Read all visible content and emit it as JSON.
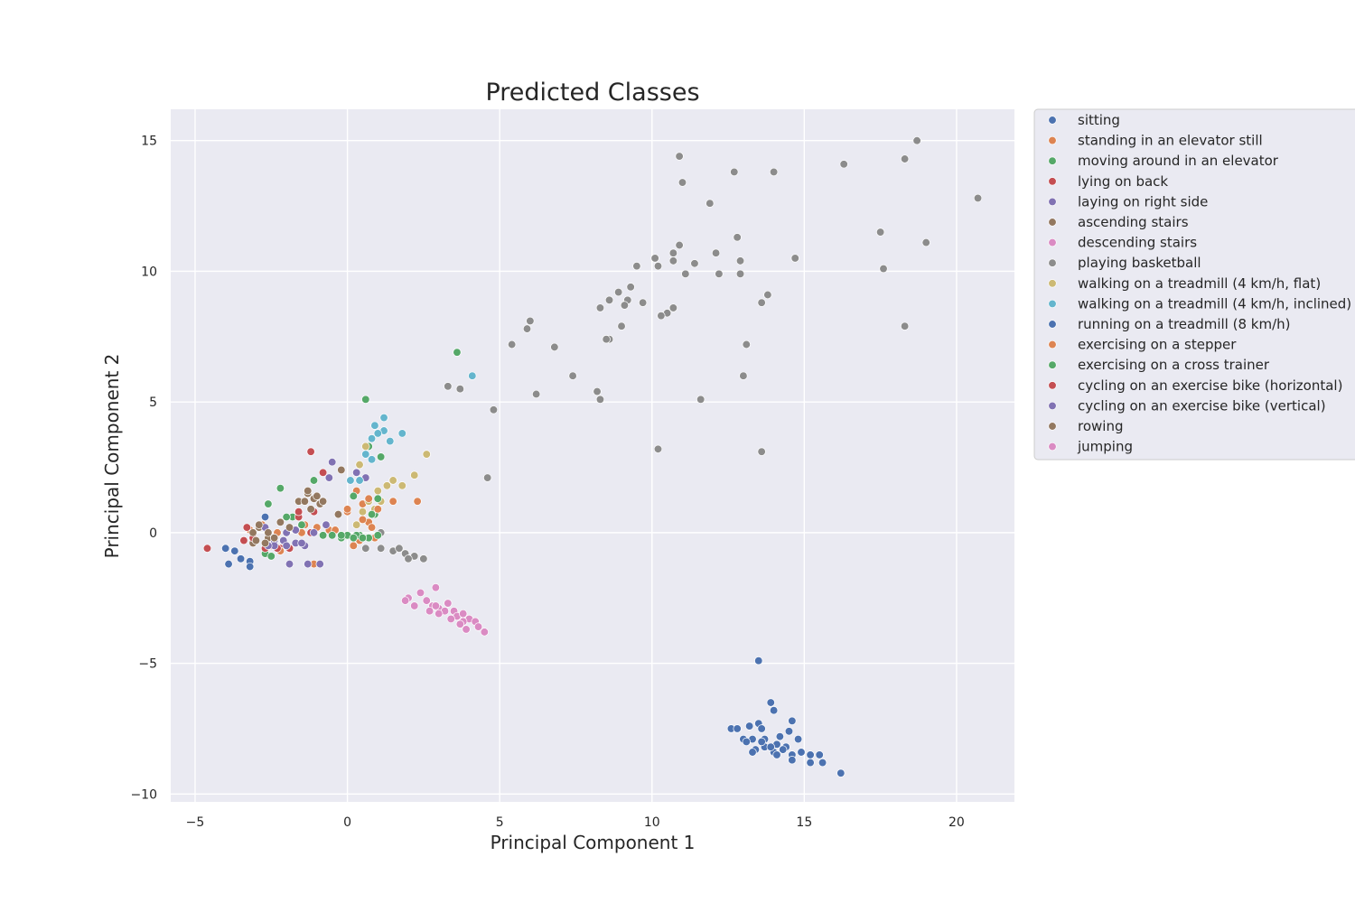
{
  "chart_data": {
    "type": "scatter",
    "title": "Predicted Classes",
    "xlabel": "Principal Component 1",
    "ylabel": "Principal Component 2",
    "xlim": [
      -5.8,
      21.9
    ],
    "ylim": [
      -10.3,
      16.2
    ],
    "xticks": [
      -5,
      0,
      5,
      10,
      15,
      20
    ],
    "yticks": [
      -10,
      -5,
      0,
      5,
      10,
      15
    ],
    "grid": true,
    "legend_position": "right-outside",
    "series": [
      {
        "name": "sitting",
        "color": "#4c72b0",
        "points": []
      },
      {
        "name": "standing in an elevator still",
        "color": "#dd8452",
        "points": [
          [
            -3.2,
            0.1
          ],
          [
            -2.8,
            0.3
          ],
          [
            -2.3,
            0.0
          ],
          [
            -1.9,
            0.2
          ],
          [
            -1.4,
            0.3
          ],
          [
            -1.0,
            0.2
          ],
          [
            -0.6,
            0.1
          ],
          [
            0.0,
            0.8
          ],
          [
            0.3,
            1.6
          ],
          [
            0.5,
            1.1
          ],
          [
            0.2,
            -0.5
          ],
          [
            -1.1,
            -1.2
          ],
          [
            0.9,
            -0.2
          ],
          [
            1.5,
            1.2
          ],
          [
            0.7,
            0.4
          ]
        ]
      },
      {
        "name": "moving around in an elevator",
        "color": "#55a868",
        "points": [
          [
            -2.2,
            1.7
          ],
          [
            -2.6,
            1.1
          ],
          [
            -1.8,
            0.6
          ],
          [
            -1.1,
            2.0
          ],
          [
            0.6,
            5.1
          ],
          [
            3.6,
            6.9
          ],
          [
            1.1,
            2.9
          ],
          [
            0.7,
            3.3
          ],
          [
            0.2,
            1.4
          ],
          [
            -0.8,
            -0.1
          ],
          [
            -0.2,
            -0.2
          ],
          [
            0.4,
            -0.1
          ],
          [
            0.9,
            0.7
          ],
          [
            -2.7,
            -0.8
          ],
          [
            -1.5,
            0.3
          ]
        ]
      },
      {
        "name": "lying on back",
        "color": "#c44e52",
        "points": [
          [
            -4.6,
            -0.6
          ],
          [
            -3.4,
            -0.3
          ],
          [
            -1.2,
            3.1
          ],
          [
            -0.8,
            2.3
          ],
          [
            -1.6,
            0.6
          ],
          [
            -2.2,
            -0.6
          ],
          [
            -1.1,
            0.8
          ],
          [
            -2.5,
            -0.5
          ]
        ]
      },
      {
        "name": "laying on right side",
        "color": "#8172b3",
        "points": [
          [
            -0.5,
            2.7
          ],
          [
            0.6,
            2.1
          ],
          [
            -1.9,
            -1.2
          ],
          [
            -1.3,
            -1.2
          ],
          [
            -0.9,
            -1.2
          ],
          [
            -1.7,
            -0.4
          ],
          [
            -2.4,
            -0.3
          ],
          [
            -1.4,
            -0.5
          ],
          [
            -2.0,
            0.0
          ]
        ]
      },
      {
        "name": "ascending stairs",
        "color": "#937860",
        "points": [
          [
            -0.2,
            2.4
          ],
          [
            -1.3,
            1.5
          ],
          [
            -0.9,
            1.1
          ],
          [
            -1.6,
            1.2
          ],
          [
            -2.9,
            0.2
          ],
          [
            -2.6,
            -0.2
          ],
          [
            -3.1,
            -0.4
          ],
          [
            -2.2,
            0.4
          ],
          [
            -0.3,
            0.7
          ],
          [
            -1.1,
            1.3
          ]
        ]
      },
      {
        "name": "descending stairs",
        "color": "#da8bc3",
        "points": []
      },
      {
        "name": "playing basketball",
        "color": "#8c8c8c",
        "points": [
          [
            18.7,
            15.0
          ],
          [
            10.9,
            14.4
          ],
          [
            16.3,
            14.1
          ],
          [
            18.3,
            14.3
          ],
          [
            12.7,
            13.8
          ],
          [
            14.0,
            13.8
          ],
          [
            11.0,
            13.4
          ],
          [
            20.7,
            12.8
          ],
          [
            11.9,
            12.6
          ],
          [
            12.8,
            11.3
          ],
          [
            17.5,
            11.5
          ],
          [
            19.0,
            11.1
          ],
          [
            10.9,
            11.0
          ],
          [
            10.7,
            10.7
          ],
          [
            10.1,
            10.5
          ],
          [
            12.1,
            10.7
          ],
          [
            14.7,
            10.5
          ],
          [
            10.7,
            10.4
          ],
          [
            11.4,
            10.3
          ],
          [
            9.5,
            10.2
          ],
          [
            10.2,
            10.2
          ],
          [
            12.9,
            10.4
          ],
          [
            17.6,
            10.1
          ],
          [
            11.1,
            9.9
          ],
          [
            12.2,
            9.9
          ],
          [
            12.9,
            9.9
          ],
          [
            9.3,
            9.4
          ],
          [
            8.9,
            9.2
          ],
          [
            13.8,
            9.1
          ],
          [
            8.6,
            8.9
          ],
          [
            9.2,
            8.9
          ],
          [
            9.7,
            8.8
          ],
          [
            9.1,
            8.7
          ],
          [
            8.3,
            8.6
          ],
          [
            10.7,
            8.6
          ],
          [
            13.6,
            8.8
          ],
          [
            10.5,
            8.4
          ],
          [
            10.3,
            8.3
          ],
          [
            6.0,
            8.1
          ],
          [
            5.9,
            7.8
          ],
          [
            9.0,
            7.9
          ],
          [
            18.3,
            7.9
          ],
          [
            8.6,
            7.4
          ],
          [
            8.5,
            7.4
          ],
          [
            5.4,
            7.2
          ],
          [
            6.8,
            7.1
          ],
          [
            13.1,
            7.2
          ],
          [
            7.4,
            6.0
          ],
          [
            13.0,
            6.0
          ],
          [
            3.3,
            5.6
          ],
          [
            3.7,
            5.5
          ],
          [
            6.2,
            5.3
          ],
          [
            8.2,
            5.4
          ],
          [
            8.3,
            5.1
          ],
          [
            11.6,
            5.1
          ],
          [
            4.8,
            4.7
          ],
          [
            10.2,
            3.2
          ],
          [
            13.6,
            3.1
          ],
          [
            4.6,
            2.1
          ],
          [
            1.1,
            -0.6
          ],
          [
            1.5,
            -0.7
          ],
          [
            1.9,
            -0.8
          ],
          [
            2.2,
            -0.9
          ],
          [
            2.5,
            -1.0
          ],
          [
            0.8,
            0.2
          ],
          [
            1.1,
            0.0
          ],
          [
            0.6,
            -0.6
          ],
          [
            1.7,
            -0.6
          ],
          [
            2.0,
            -1.0
          ]
        ]
      },
      {
        "name": "walking on a treadmill (4 km/h, flat)",
        "color": "#ccb974",
        "points": [
          [
            2.6,
            3.0
          ],
          [
            2.2,
            2.2
          ],
          [
            1.8,
            1.8
          ],
          [
            1.5,
            2.0
          ],
          [
            1.3,
            1.8
          ],
          [
            1.0,
            1.6
          ],
          [
            0.7,
            1.2
          ],
          [
            0.4,
            2.6
          ],
          [
            0.3,
            2.3
          ],
          [
            0.6,
            3.3
          ],
          [
            1.1,
            1.2
          ],
          [
            0.9,
            0.9
          ],
          [
            0.5,
            0.8
          ],
          [
            0.3,
            0.3
          ]
        ]
      },
      {
        "name": "walking on a treadmill (4 km/h, inclined)",
        "color": "#64b5cd",
        "points": [
          [
            1.2,
            4.4
          ],
          [
            0.9,
            4.1
          ],
          [
            1.2,
            3.9
          ],
          [
            1.8,
            3.8
          ],
          [
            1.0,
            3.8
          ],
          [
            1.4,
            3.5
          ],
          [
            0.8,
            3.6
          ],
          [
            0.6,
            3.0
          ],
          [
            0.8,
            2.8
          ],
          [
            0.4,
            2.0
          ],
          [
            0.1,
            2.0
          ],
          [
            4.1,
            6.0
          ]
        ]
      },
      {
        "name": "running on a treadmill (8 km/h)",
        "color": "#4c72b0",
        "points": [
          [
            13.5,
            -4.9
          ],
          [
            13.9,
            -6.5
          ],
          [
            14.0,
            -6.8
          ],
          [
            14.6,
            -7.2
          ],
          [
            12.6,
            -7.5
          ],
          [
            12.8,
            -7.5
          ],
          [
            13.2,
            -7.4
          ],
          [
            13.5,
            -7.3
          ],
          [
            13.6,
            -7.5
          ],
          [
            14.5,
            -7.6
          ],
          [
            14.2,
            -7.8
          ],
          [
            13.0,
            -7.9
          ],
          [
            13.3,
            -7.9
          ],
          [
            13.7,
            -7.9
          ],
          [
            14.1,
            -8.1
          ],
          [
            14.4,
            -8.2
          ],
          [
            14.8,
            -7.9
          ],
          [
            13.1,
            -8.0
          ],
          [
            13.4,
            -8.3
          ],
          [
            13.7,
            -8.2
          ],
          [
            14.0,
            -8.4
          ],
          [
            14.3,
            -8.3
          ],
          [
            14.6,
            -8.5
          ],
          [
            14.9,
            -8.4
          ],
          [
            15.2,
            -8.5
          ],
          [
            15.5,
            -8.5
          ],
          [
            15.2,
            -8.8
          ],
          [
            15.6,
            -8.8
          ],
          [
            14.6,
            -8.7
          ],
          [
            13.9,
            -8.2
          ],
          [
            13.3,
            -8.4
          ],
          [
            13.6,
            -8.0
          ],
          [
            14.1,
            -8.5
          ],
          [
            16.2,
            -9.2
          ],
          [
            -4.0,
            -0.6
          ],
          [
            -3.7,
            -0.7
          ],
          [
            -3.5,
            -1.0
          ],
          [
            -3.2,
            -1.1
          ],
          [
            -3.9,
            -1.2
          ],
          [
            -3.2,
            -1.3
          ],
          [
            -2.7,
            0.6
          ]
        ]
      },
      {
        "name": "exercising on a stepper",
        "color": "#dd8452",
        "points": [
          [
            2.3,
            1.2
          ],
          [
            1.0,
            0.9
          ],
          [
            0.7,
            1.3
          ],
          [
            0.4,
            -0.3
          ],
          [
            -1.5,
            0.0
          ],
          [
            -2.2,
            -0.7
          ],
          [
            0.0,
            0.9
          ],
          [
            0.8,
            0.2
          ],
          [
            -0.4,
            0.1
          ],
          [
            0.5,
            0.5
          ]
        ]
      },
      {
        "name": "exercising on a cross trainer",
        "color": "#55a868",
        "points": [
          [
            0.0,
            -0.1
          ],
          [
            0.3,
            -0.1
          ],
          [
            0.7,
            -0.2
          ],
          [
            -0.5,
            -0.1
          ],
          [
            -0.8,
            -0.1
          ],
          [
            1.0,
            -0.1
          ],
          [
            0.5,
            -0.2
          ],
          [
            1.0,
            1.3
          ],
          [
            0.8,
            0.7
          ],
          [
            -2.0,
            0.6
          ],
          [
            -2.5,
            -0.9
          ],
          [
            0.2,
            -0.2
          ],
          [
            -0.2,
            -0.1
          ]
        ]
      },
      {
        "name": "cycling on an exercise bike (horizontal)",
        "color": "#c44e52",
        "points": [
          [
            -1.6,
            0.8
          ],
          [
            -3.1,
            -0.2
          ],
          [
            -2.7,
            -0.6
          ],
          [
            -2.3,
            -0.6
          ],
          [
            -1.9,
            -0.6
          ],
          [
            -1.2,
            0.0
          ],
          [
            -2.4,
            -0.2
          ],
          [
            -3.3,
            0.2
          ]
        ]
      },
      {
        "name": "cycling on an exercise bike (vertical)",
        "color": "#8172b3",
        "points": [
          [
            -0.6,
            2.1
          ],
          [
            0.3,
            2.3
          ],
          [
            -2.7,
            0.2
          ],
          [
            -2.4,
            -0.5
          ],
          [
            -2.1,
            -0.3
          ],
          [
            -1.7,
            0.1
          ],
          [
            -1.1,
            0.0
          ],
          [
            -0.7,
            0.3
          ],
          [
            -2.0,
            -0.5
          ],
          [
            -2.6,
            -0.5
          ],
          [
            -1.5,
            -0.4
          ]
        ]
      },
      {
        "name": "rowing",
        "color": "#937860",
        "points": [
          [
            -1.3,
            1.6
          ],
          [
            -1.0,
            1.4
          ],
          [
            -0.8,
            1.2
          ],
          [
            -1.4,
            1.2
          ],
          [
            -1.2,
            0.9
          ],
          [
            -2.9,
            0.3
          ],
          [
            -2.6,
            0.0
          ],
          [
            -3.0,
            -0.3
          ],
          [
            -2.7,
            -0.4
          ],
          [
            -2.4,
            -0.2
          ],
          [
            -1.9,
            0.2
          ],
          [
            -3.1,
            0.0
          ]
        ]
      },
      {
        "name": "jumping",
        "color": "#da8bc3",
        "points": [
          [
            2.9,
            -2.1
          ],
          [
            2.4,
            -2.3
          ],
          [
            2.0,
            -2.5
          ],
          [
            2.2,
            -2.8
          ],
          [
            1.9,
            -2.6
          ],
          [
            2.6,
            -2.6
          ],
          [
            2.8,
            -2.8
          ],
          [
            3.0,
            -2.9
          ],
          [
            3.3,
            -2.7
          ],
          [
            3.2,
            -3.0
          ],
          [
            3.5,
            -3.0
          ],
          [
            3.6,
            -3.2
          ],
          [
            3.8,
            -3.1
          ],
          [
            4.0,
            -3.3
          ],
          [
            4.2,
            -3.4
          ],
          [
            3.8,
            -3.4
          ],
          [
            4.3,
            -3.6
          ],
          [
            3.9,
            -3.7
          ],
          [
            4.5,
            -3.8
          ],
          [
            2.7,
            -3.0
          ],
          [
            3.0,
            -3.1
          ],
          [
            3.4,
            -3.3
          ],
          [
            3.7,
            -3.5
          ],
          [
            2.9,
            -2.8
          ]
        ]
      }
    ]
  }
}
